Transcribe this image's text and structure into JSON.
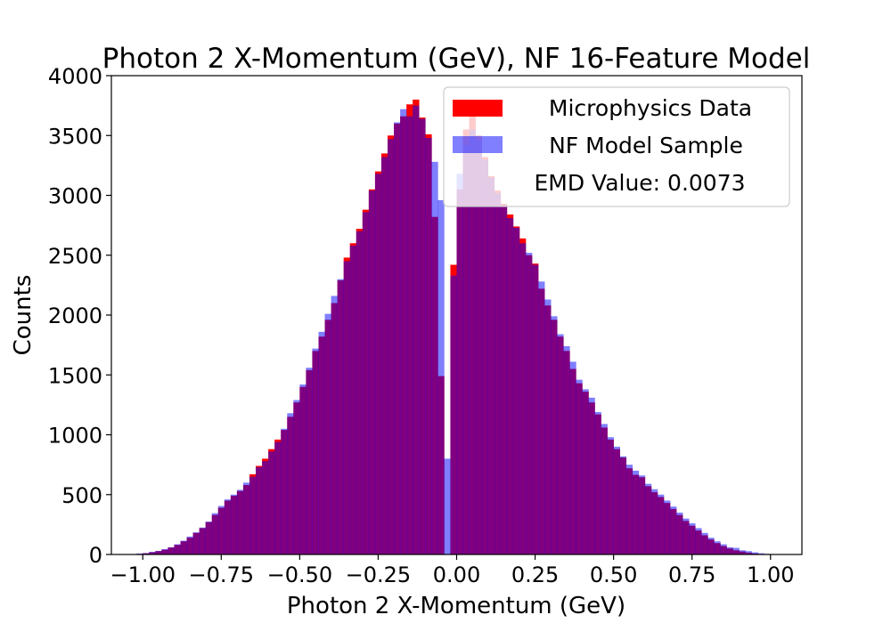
{
  "chart_data": {
    "type": "bar",
    "title": "Photon 2 X-Momentum (GeV), NF 16-Feature Model",
    "xlabel": "Photon 2 X-Momentum (GeV)",
    "ylabel": "Counts",
    "xlim": [
      -1.1,
      1.1
    ],
    "ylim": [
      0,
      4000
    ],
    "xticks": [
      -1.0,
      -0.75,
      -0.5,
      -0.25,
      0.0,
      0.25,
      0.5,
      0.75,
      1.0
    ],
    "xtick_labels": [
      "−1.00",
      "−0.75",
      "−0.50",
      "−0.25",
      "0.00",
      "0.25",
      "0.50",
      "0.75",
      "1.00"
    ],
    "yticks": [
      0,
      500,
      1000,
      1500,
      2000,
      2500,
      3000,
      3500,
      4000
    ],
    "ytick_labels": [
      "0",
      "500",
      "1000",
      "1500",
      "2000",
      "2500",
      "3000",
      "3500",
      "4000"
    ],
    "bin_start": -1.02,
    "bin_width": 0.02,
    "grid": false,
    "legend_position": "upper right",
    "annotation": "EMD Value: 0.0073",
    "series": [
      {
        "name": "Microphysics Data",
        "color": "#ff0000",
        "opacity": 1.0,
        "values": [
          5,
          10,
          18,
          28,
          40,
          58,
          80,
          110,
          140,
          180,
          220,
          270,
          330,
          390,
          450,
          490,
          530,
          580,
          670,
          740,
          800,
          880,
          960,
          1040,
          1150,
          1270,
          1400,
          1540,
          1700,
          1820,
          1960,
          2100,
          2290,
          2480,
          2600,
          2720,
          2880,
          3050,
          3200,
          3350,
          3500,
          3600,
          3660,
          3760,
          3800,
          3650,
          3510,
          2820,
          1490,
          0,
          2420,
          3050,
          3550,
          3680,
          3500,
          3320,
          3160,
          3040,
          2930,
          2840,
          2740,
          2640,
          2500,
          2430,
          2220,
          2080,
          1960,
          1820,
          1700,
          1550,
          1430,
          1360,
          1270,
          1170,
          1060,
          960,
          880,
          810,
          720,
          665,
          645,
          570,
          520,
          480,
          430,
          380,
          330,
          280,
          240,
          200,
          160,
          125,
          95,
          70,
          50,
          35,
          25,
          15,
          8,
          4,
          2
        ]
      },
      {
        "name": "NF Model Sample",
        "color": "#0000ff",
        "opacity": 0.5,
        "values": [
          8,
          12,
          22,
          30,
          45,
          60,
          85,
          115,
          150,
          185,
          225,
          275,
          345,
          405,
          460,
          500,
          540,
          600,
          650,
          730,
          780,
          860,
          940,
          1050,
          1180,
          1290,
          1420,
          1560,
          1720,
          1860,
          2010,
          2160,
          2300,
          2450,
          2580,
          2700,
          2860,
          3040,
          3180,
          3320,
          3470,
          3610,
          3720,
          3660,
          3750,
          3640,
          3480,
          3280,
          2960,
          800,
          2330,
          3180,
          3420,
          3550,
          3460,
          3300,
          3150,
          3020,
          2920,
          2810,
          2730,
          2600,
          2520,
          2420,
          2280,
          2130,
          1990,
          1840,
          1740,
          1610,
          1460,
          1380,
          1310,
          1190,
          1090,
          980,
          900,
          820,
          750,
          700,
          660,
          590,
          545,
          500,
          450,
          400,
          350,
          300,
          260,
          220,
          180,
          140,
          110,
          85,
          60,
          55,
          35,
          28,
          18,
          10,
          5
        ]
      }
    ]
  }
}
